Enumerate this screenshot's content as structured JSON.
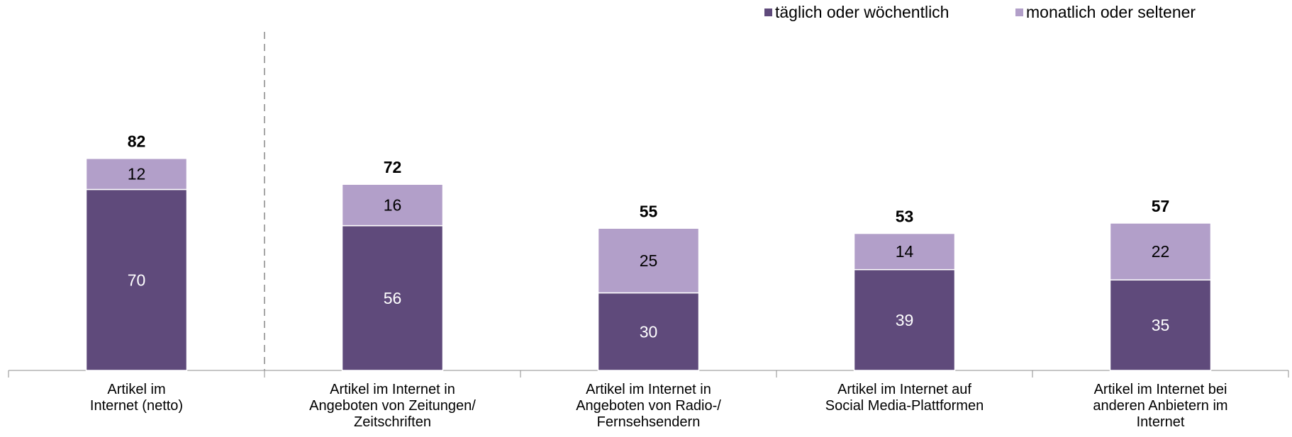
{
  "chart_data": {
    "type": "bar",
    "stacked": true,
    "categories": [
      "Artikel im\nInternet (netto)",
      "Artikel im Internet in\nAngeboten von Zeitungen/\nZeitschriften",
      "Artikel im Internet in\nAngeboten von Radio-/\nFernsehsendern",
      "Artikel im Internet auf\nSocial Media-Plattformen",
      "Artikel im Internet bei\nanderen Anbietern im\nInternet"
    ],
    "series": [
      {
        "name": "täglich oder wöchentlich",
        "color": "#5f4a7b",
        "values": [
          70,
          56,
          30,
          39,
          35
        ]
      },
      {
        "name": "monatlich oder seltener",
        "color": "#b29fc9",
        "values": [
          12,
          16,
          25,
          14,
          22
        ]
      }
    ],
    "totals": [
      82,
      72,
      55,
      53,
      57
    ],
    "legend_position": "top-right",
    "grid": false,
    "ylim": [
      0,
      100
    ],
    "separator_after_category": 0
  }
}
